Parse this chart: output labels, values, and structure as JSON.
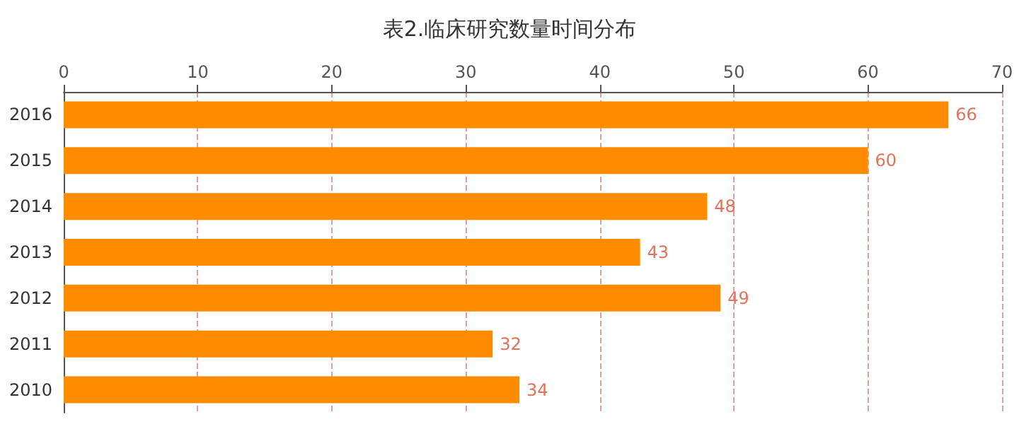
{
  "chart_data": {
    "type": "bar",
    "orientation": "horizontal",
    "title": "表2.临床研究数量时间分布",
    "categories": [
      "2016",
      "2015",
      "2014",
      "2013",
      "2012",
      "2011",
      "2010"
    ],
    "values": [
      66,
      60,
      48,
      43,
      49,
      32,
      34
    ],
    "color": "#ff8c00",
    "xlim": [
      0,
      70
    ],
    "xticks": [
      0,
      10,
      20,
      30,
      40,
      50,
      60,
      70
    ],
    "grid": "x",
    "data_labels": true
  }
}
